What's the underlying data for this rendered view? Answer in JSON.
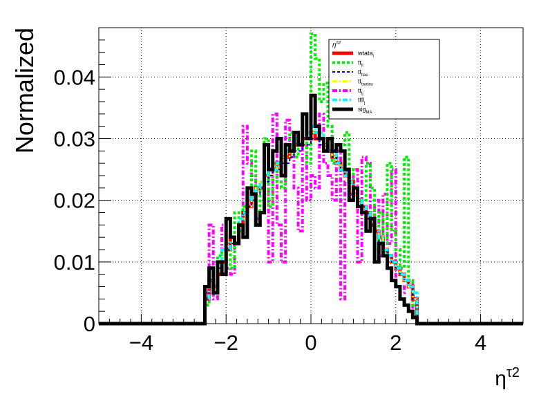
{
  "chart_data": {
    "type": "line",
    "title": "",
    "xlabel_base": "η",
    "xlabel_sup": "τ2",
    "ylabel": "Normalized",
    "xlim": [
      -5,
      5
    ],
    "ylim": [
      0,
      0.048
    ],
    "grid": true,
    "x_ticks": [
      -4,
      -2,
      0,
      2,
      4
    ],
    "x_tick_labels": [
      "−4",
      "−2",
      "0",
      "2",
      "4"
    ],
    "y_ticks": [
      0,
      0.01,
      0.02,
      0.03,
      0.04
    ],
    "y_tick_labels": [
      "0",
      "0.01",
      "0.02",
      "0.03",
      "0.04"
    ],
    "legend": {
      "title": "η^τ2",
      "position": "top-right",
      "entries": [
        {
          "base": "wtata",
          "sub": "l",
          "color": "#ff0000",
          "dash": "solid",
          "width": 5
        },
        {
          "base": "tt",
          "sub": "ll",
          "color": "#00ee00",
          "dash": "dotted",
          "width": 4
        },
        {
          "base": "tt",
          "sub": "ltau",
          "color": "#000099",
          "dash": "dotted",
          "width": 2
        },
        {
          "base": "tt",
          "sub": "tautau",
          "color": "#ffff00",
          "dash": "dashdot",
          "width": 3
        },
        {
          "base": "tt",
          "sub": "lj",
          "color": "#ff00ff",
          "dash": "dashdot",
          "width": 4
        },
        {
          "base": "ttll",
          "sub": "j",
          "color": "#00ffff",
          "dash": "dashdot",
          "width": 4
        },
        {
          "base": "sig",
          "sub": "MA",
          "color": "#000000",
          "dash": "solid",
          "width": 5
        }
      ]
    },
    "bin_edges_range": [
      -2.5,
      2.5
    ],
    "n_bins": 50,
    "series": [
      {
        "name": "wtata_l",
        "color": "#ff0000",
        "values": [
          0.004,
          0.007,
          0.006,
          0.008,
          0.01,
          0.012,
          0.014,
          0.013,
          0.016,
          0.018,
          0.019,
          0.021,
          0.022,
          0.022,
          0.024,
          0.025,
          0.025,
          0.026,
          0.027,
          0.027,
          0.028,
          0.029,
          0.029,
          0.03,
          0.03,
          0.031,
          0.03,
          0.03,
          0.029,
          0.028,
          0.027,
          0.026,
          0.025,
          0.024,
          0.023,
          0.021,
          0.02,
          0.019,
          0.018,
          0.016,
          0.015,
          0.014,
          0.012,
          0.011,
          0.01,
          0.009,
          0.008,
          0.007,
          0.006,
          0.004
        ]
      },
      {
        "name": "tt_ll",
        "color": "#00ee00",
        "values": [
          0.003,
          0.009,
          0.005,
          0.011,
          0.012,
          0.013,
          0.009,
          0.018,
          0.015,
          0.019,
          0.021,
          0.028,
          0.016,
          0.022,
          0.03,
          0.019,
          0.026,
          0.023,
          0.022,
          0.028,
          0.031,
          0.027,
          0.029,
          0.034,
          0.026,
          0.047,
          0.043,
          0.036,
          0.039,
          0.032,
          0.026,
          0.028,
          0.029,
          0.031,
          0.025,
          0.022,
          0.02,
          0.02,
          0.026,
          0.022,
          0.012,
          0.018,
          0.013,
          0.026,
          0.015,
          0.012,
          0.009,
          0.027,
          0.007,
          0.003
        ]
      },
      {
        "name": "tt_ltau",
        "color": "#000099",
        "values": [
          0.004,
          0.006,
          0.006,
          0.009,
          0.01,
          0.012,
          0.013,
          0.013,
          0.016,
          0.018,
          0.019,
          0.02,
          0.021,
          0.022,
          0.023,
          0.024,
          0.025,
          0.025,
          0.026,
          0.026,
          0.027,
          0.028,
          0.028,
          0.029,
          0.029,
          0.03,
          0.03,
          0.029,
          0.028,
          0.028,
          0.027,
          0.026,
          0.025,
          0.024,
          0.023,
          0.021,
          0.02,
          0.019,
          0.017,
          0.016,
          0.015,
          0.013,
          0.012,
          0.011,
          0.01,
          0.009,
          0.008,
          0.007,
          0.006,
          0.004
        ]
      },
      {
        "name": "tt_tautau",
        "color": "#ffff00",
        "values": [
          0.004,
          0.007,
          0.006,
          0.009,
          0.011,
          0.012,
          0.013,
          0.014,
          0.016,
          0.017,
          0.019,
          0.02,
          0.022,
          0.023,
          0.024,
          0.024,
          0.025,
          0.026,
          0.027,
          0.027,
          0.028,
          0.029,
          0.029,
          0.03,
          0.03,
          0.031,
          0.031,
          0.03,
          0.029,
          0.028,
          0.027,
          0.026,
          0.025,
          0.024,
          0.022,
          0.021,
          0.02,
          0.019,
          0.017,
          0.016,
          0.015,
          0.014,
          0.012,
          0.011,
          0.01,
          0.009,
          0.008,
          0.007,
          0.006,
          0.004
        ]
      },
      {
        "name": "tt_lj",
        "color": "#ff00ff",
        "values": [
          0.005,
          0.016,
          0.004,
          0.01,
          0.016,
          0.009,
          0.008,
          0.013,
          0.014,
          0.032,
          0.026,
          0.024,
          0.017,
          0.018,
          0.027,
          0.01,
          0.034,
          0.016,
          0.01,
          0.033,
          0.028,
          0.022,
          0.015,
          0.029,
          0.02,
          0.024,
          0.022,
          0.034,
          0.026,
          0.024,
          0.02,
          0.028,
          0.004,
          0.023,
          0.021,
          0.025,
          0.01,
          0.027,
          0.026,
          0.016,
          0.02,
          0.011,
          0.021,
          0.013,
          0.025,
          0.006,
          0.005,
          0.006,
          0.007,
          0.002
        ]
      },
      {
        "name": "ttll_j",
        "color": "#00ffff",
        "values": [
          0.004,
          0.007,
          0.006,
          0.01,
          0.012,
          0.012,
          0.014,
          0.013,
          0.017,
          0.018,
          0.02,
          0.021,
          0.022,
          0.023,
          0.024,
          0.025,
          0.025,
          0.026,
          0.028,
          0.028,
          0.029,
          0.03,
          0.029,
          0.031,
          0.031,
          0.032,
          0.031,
          0.031,
          0.03,
          0.028,
          0.028,
          0.026,
          0.025,
          0.024,
          0.023,
          0.022,
          0.02,
          0.019,
          0.018,
          0.016,
          0.015,
          0.014,
          0.012,
          0.011,
          0.01,
          0.009,
          0.008,
          0.007,
          0.006,
          0.005
        ]
      },
      {
        "name": "sig_MA",
        "color": "#000000",
        "values": [
          0.006,
          0.009,
          0.005,
          0.01,
          0.008,
          0.017,
          0.014,
          0.013,
          0.016,
          0.014,
          0.022,
          0.021,
          0.016,
          0.018,
          0.029,
          0.025,
          0.028,
          0.03,
          0.024,
          0.029,
          0.028,
          0.031,
          0.029,
          0.034,
          0.03,
          0.037,
          0.032,
          0.03,
          0.028,
          0.03,
          0.028,
          0.029,
          0.028,
          0.025,
          0.02,
          0.022,
          0.019,
          0.018,
          0.015,
          0.017,
          0.01,
          0.013,
          0.011,
          0.009,
          0.007,
          0.006,
          0.004,
          0.003,
          0.002,
          0.001
        ]
      }
    ]
  }
}
